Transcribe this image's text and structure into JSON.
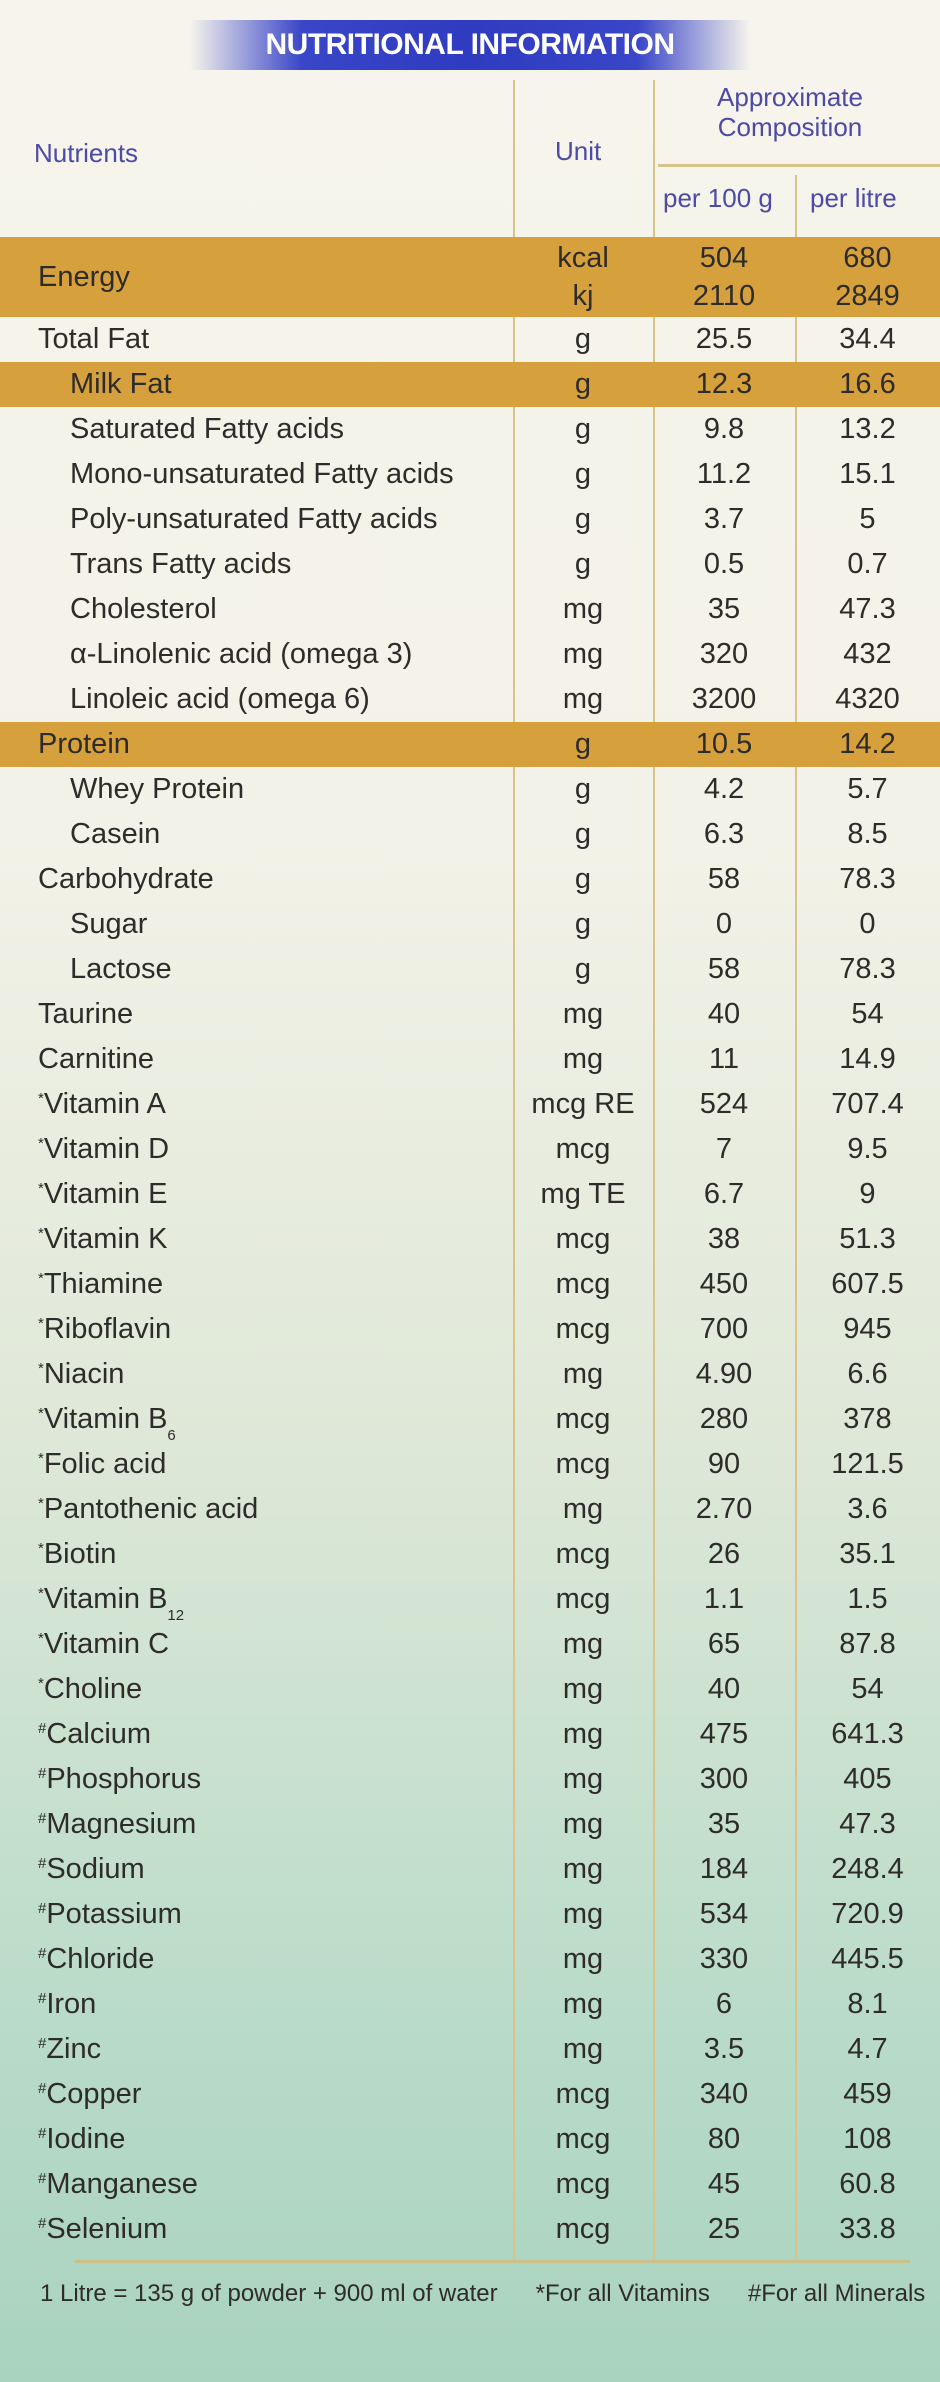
{
  "title": "NUTRITIONAL INFORMATION",
  "headers": {
    "nutrients": "Nutrients",
    "unit": "Unit",
    "composition": "Approximate Composition",
    "per100": "per 100 g",
    "perlitre": "per litre"
  },
  "colors": {
    "title_band": "#2f3bc0",
    "highlight_row": "#d6a13d",
    "header_text": "#4d4aa6"
  },
  "energy": {
    "name": "Energy",
    "unit1": "kcal",
    "unit2": "kj",
    "v1a": "504",
    "v1b": "2110",
    "v2a": "680",
    "v2b": "2849"
  },
  "rows": [
    {
      "name": "Total Fat",
      "unit": "g",
      "v1": "25.5",
      "v2": "34.4"
    },
    {
      "name": "Milk Fat",
      "unit": "g",
      "v1": "12.3",
      "v2": "16.6",
      "indent": true,
      "gold": true
    },
    {
      "name": "Saturated Fatty acids",
      "unit": "g",
      "v1": "9.8",
      "v2": "13.2",
      "indent": true
    },
    {
      "name": "Mono-unsaturated Fatty acids",
      "unit": "g",
      "v1": "11.2",
      "v2": "15.1",
      "indent": true
    },
    {
      "name": "Poly-unsaturated Fatty acids",
      "unit": "g",
      "v1": "3.7",
      "v2": "5",
      "indent": true
    },
    {
      "name": "Trans Fatty acids",
      "unit": "g",
      "v1": "0.5",
      "v2": "0.7",
      "indent": true
    },
    {
      "name": "Cholesterol",
      "unit": "mg",
      "v1": "35",
      "v2": "47.3",
      "indent": true
    },
    {
      "name": "α-Linolenic acid (omega 3)",
      "unit": "mg",
      "v1": "320",
      "v2": "432",
      "indent": true
    },
    {
      "name": "Linoleic acid (omega 6)",
      "unit": "mg",
      "v1": "3200",
      "v2": "4320",
      "indent": true
    },
    {
      "name": "Protein",
      "unit": "g",
      "v1": "10.5",
      "v2": "14.2",
      "gold": true
    },
    {
      "name": "Whey Protein",
      "unit": "g",
      "v1": "4.2",
      "v2": "5.7",
      "indent": true
    },
    {
      "name": "Casein",
      "unit": "g",
      "v1": "6.3",
      "v2": "8.5",
      "indent": true
    },
    {
      "name": "Carbohydrate",
      "unit": "g",
      "v1": "58",
      "v2": "78.3"
    },
    {
      "name": "Sugar",
      "unit": "g",
      "v1": "0",
      "v2": "0",
      "indent": true
    },
    {
      "name": "Lactose",
      "unit": "g",
      "v1": "58",
      "v2": "78.3",
      "indent": true
    },
    {
      "name": "Taurine",
      "unit": "mg",
      "v1": "40",
      "v2": "54"
    },
    {
      "name": "Carnitine",
      "unit": "mg",
      "v1": "11",
      "v2": "14.9"
    },
    {
      "mark": "*",
      "name": "Vitamin A",
      "unit": "mcg RE",
      "v1": "524",
      "v2": "707.4"
    },
    {
      "mark": "*",
      "name": "Vitamin D",
      "unit": "mcg",
      "v1": "7",
      "v2": "9.5"
    },
    {
      "mark": "*",
      "name": "Vitamin E",
      "unit": "mg TE",
      "v1": "6.7",
      "v2": "9"
    },
    {
      "mark": "*",
      "name": "Vitamin K",
      "unit": "mcg",
      "v1": "38",
      "v2": "51.3"
    },
    {
      "mark": "*",
      "name": "Thiamine",
      "unit": "mcg",
      "v1": "450",
      "v2": "607.5"
    },
    {
      "mark": "*",
      "name": "Riboflavin",
      "unit": "mcg",
      "v1": "700",
      "v2": "945"
    },
    {
      "mark": "*",
      "name": "Niacin",
      "unit": "mg",
      "v1": "4.90",
      "v2": "6.6"
    },
    {
      "mark": "*",
      "name": "Vitamin B",
      "sub": "6",
      "unit": "mcg",
      "v1": "280",
      "v2": "378"
    },
    {
      "mark": "*",
      "name": "Folic acid",
      "unit": "mcg",
      "v1": "90",
      "v2": "121.5"
    },
    {
      "mark": "*",
      "name": "Pantothenic  acid",
      "unit": "mg",
      "v1": "2.70",
      "v2": "3.6"
    },
    {
      "mark": "*",
      "name": "Biotin",
      "unit": "mcg",
      "v1": "26",
      "v2": "35.1"
    },
    {
      "mark": "*",
      "name": "Vitamin B",
      "sub": "12",
      "unit": "mcg",
      "v1": "1.1",
      "v2": "1.5"
    },
    {
      "mark": "*",
      "name": "Vitamin C",
      "unit": "mg",
      "v1": "65",
      "v2": "87.8"
    },
    {
      "mark": "*",
      "name": "Choline",
      "unit": "mg",
      "v1": "40",
      "v2": "54"
    },
    {
      "mark": "#",
      "name": "Calcium",
      "unit": "mg",
      "v1": "475",
      "v2": "641.3"
    },
    {
      "mark": "#",
      "name": "Phosphorus",
      "unit": "mg",
      "v1": "300",
      "v2": "405"
    },
    {
      "mark": "#",
      "name": "Magnesium",
      "unit": "mg",
      "v1": "35",
      "v2": "47.3"
    },
    {
      "mark": "#",
      "name": "Sodium",
      "unit": "mg",
      "v1": "184",
      "v2": "248.4"
    },
    {
      "mark": "#",
      "name": "Potassium",
      "unit": "mg",
      "v1": "534",
      "v2": "720.9"
    },
    {
      "mark": "#",
      "name": "Chloride",
      "unit": "mg",
      "v1": "330",
      "v2": "445.5"
    },
    {
      "mark": "#",
      "name": "Iron",
      "unit": "mg",
      "v1": "6",
      "v2": "8.1"
    },
    {
      "mark": "#",
      "name": "Zinc",
      "unit": "mg",
      "v1": "3.5",
      "v2": "4.7"
    },
    {
      "mark": "#",
      "name": "Copper",
      "unit": "mcg",
      "v1": "340",
      "v2": "459"
    },
    {
      "mark": "#",
      "name": "Iodine",
      "unit": "mcg",
      "v1": "80",
      "v2": "108"
    },
    {
      "mark": "#",
      "name": "Manganese",
      "unit": "mcg",
      "v1": "45",
      "v2": "60.8"
    },
    {
      "mark": "#",
      "name": "Selenium",
      "unit": "mcg",
      "v1": "25",
      "v2": "33.8"
    }
  ],
  "footer": {
    "note": "1 Litre = 135 g of powder + 900 ml of water",
    "vitamins": "*For all Vitamins",
    "minerals": "#For all Minerals"
  }
}
